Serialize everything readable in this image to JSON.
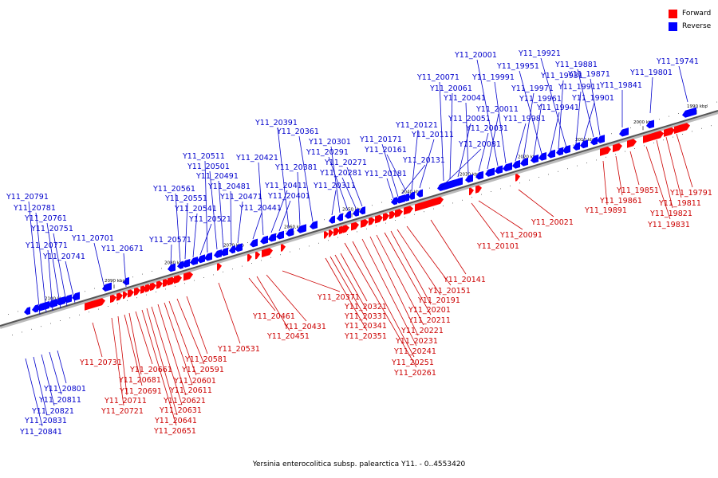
{
  "colors": {
    "forward": "#ff0000",
    "reverse": "#0000ff",
    "forward_label": "#cc0000",
    "reverse_label": "#0000cc",
    "axis": "#555555"
  },
  "legend": {
    "forward": "Forward",
    "reverse": "Reverse"
  },
  "caption": "Yersinia enterocolitica subsp. palearctica Y11. - 0..4553420",
  "scale": {
    "unit_label": "kbp",
    "ticks": [
      {
        "kbp": 1990,
        "label": "1990 kbp"
      },
      {
        "kbp": 2000,
        "label": "2000 kbp"
      },
      {
        "kbp": 2010,
        "label": "2010 kbp"
      },
      {
        "kbp": 2020,
        "label": "2020 kbp"
      },
      {
        "kbp": 2030,
        "label": "2030 kbp"
      },
      {
        "kbp": 2040,
        "label": "2040 kbp"
      },
      {
        "kbp": 2050,
        "label": "2050 kbp"
      },
      {
        "kbp": 2060,
        "label": "2060 kbp"
      },
      {
        "kbp": 2070,
        "label": "2070 kbp"
      },
      {
        "kbp": 2080,
        "label": "2080 kbp"
      },
      {
        "kbp": 2090,
        "label": "2090 kbp"
      },
      {
        "kbp": 2100,
        "label": "2100 kbp"
      }
    ]
  },
  "reverse_labels": [
    "Y11_19741",
    "Y11_19801",
    "Y11_19841",
    "Y11_19871",
    "Y11_19881",
    "Y11_19901",
    "Y11_19911",
    "Y11_19921",
    "Y11_19931",
    "Y11_19941",
    "Y11_19951",
    "Y11_19961",
    "Y11_19971",
    "Y11_19981",
    "Y11_19991",
    "Y11_20001",
    "Y11_20011",
    "Y11_20031",
    "Y11_20041",
    "Y11_20051",
    "Y11_20061",
    "Y11_20071",
    "Y11_20081",
    "Y11_20111",
    "Y11_20121",
    "Y11_20131",
    "Y11_20161",
    "Y11_20171",
    "Y11_20181",
    "Y11_20271",
    "Y11_20281",
    "Y11_20291",
    "Y11_20301",
    "Y11_20311",
    "Y11_20361",
    "Y11_20381",
    "Y11_20391",
    "Y11_20401",
    "Y11_20411",
    "Y11_20421",
    "Y11_20441",
    "Y11_20471",
    "Y11_20481",
    "Y11_20491",
    "Y11_20501",
    "Y11_20511",
    "Y11_20521",
    "Y11_20541",
    "Y11_20551",
    "Y11_20561",
    "Y11_20571",
    "Y11_20671",
    "Y11_20701",
    "Y11_20741",
    "Y11_20751",
    "Y11_20761",
    "Y11_20771",
    "Y11_20781",
    "Y11_20791",
    "Y11_20801",
    "Y11_20811",
    "Y11_20821",
    "Y11_20831",
    "Y11_20841"
  ],
  "forward_labels": [
    "Y11_19791",
    "Y11_19811",
    "Y11_19821",
    "Y11_19831",
    "Y11_19851",
    "Y11_19861",
    "Y11_19891",
    "Y11_20021",
    "Y11_20091",
    "Y11_20101",
    "Y11_20141",
    "Y11_20151",
    "Y11_20191",
    "Y11_20201",
    "Y11_20211",
    "Y11_20221",
    "Y11_20231",
    "Y11_20241",
    "Y11_20251",
    "Y11_20261",
    "Y11_20321",
    "Y11_20331",
    "Y11_20341",
    "Y11_20351",
    "Y11_20371",
    "Y11_20431",
    "Y11_20451",
    "Y11_20461",
    "Y11_20531",
    "Y11_20581",
    "Y11_20591",
    "Y11_20601",
    "Y11_20611",
    "Y11_20621",
    "Y11_20631",
    "Y11_20641",
    "Y11_20651",
    "Y11_20661",
    "Y11_20681",
    "Y11_20691",
    "Y11_20711",
    "Y11_20721",
    "Y11_20731"
  ]
}
